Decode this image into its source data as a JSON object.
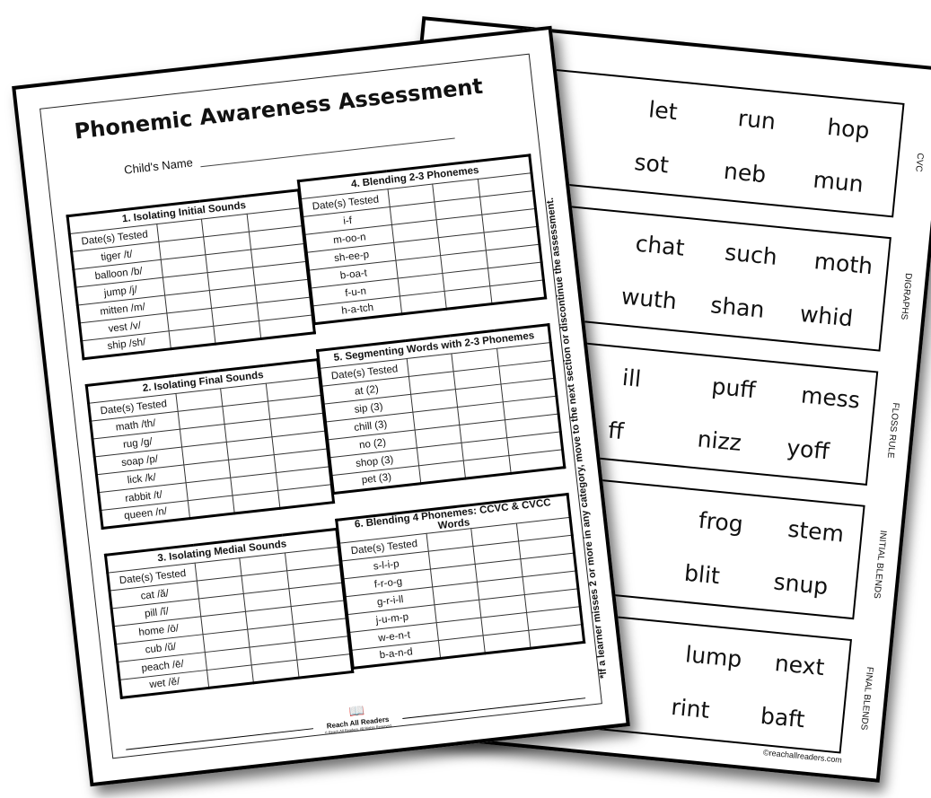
{
  "back_sheet": {
    "cards": [
      {
        "label": "CVC",
        "words": [
          "let",
          "run",
          "hop",
          "sot",
          "neb",
          "mun"
        ]
      },
      {
        "label": "DIGRAPHS",
        "words": [
          "chat",
          "such",
          "moth",
          "wuth",
          "shan",
          "whid"
        ]
      },
      {
        "label": "FLOSS RULE",
        "words": [
          "ill",
          "puff",
          "mess",
          "ff",
          "nizz",
          "yoff"
        ]
      },
      {
        "label": "INITIAL BLENDS",
        "words": [
          "",
          "frog",
          "stem",
          "",
          "blit",
          "snup"
        ]
      },
      {
        "label": "FINAL BLENDS",
        "words": [
          "",
          "lump",
          "next",
          "",
          "rint",
          "baft"
        ]
      }
    ],
    "copyright": "©reachallreaders.com"
  },
  "front_sheet": {
    "title": "Phonemic Awareness Assessment",
    "name_label": "Child's Name",
    "tables": [
      {
        "title": "1. Isolating Initial Sounds",
        "header": "Date(s) Tested",
        "rows": [
          "tiger /t/",
          "balloon /b/",
          "jump /j/",
          "mitten /m/",
          "vest /v/",
          "ship /sh/"
        ]
      },
      {
        "title": "2. Isolating Final Sounds",
        "header": "Date(s) Tested",
        "rows": [
          "math /th/",
          "rug /g/",
          "soap /p/",
          "lick /k/",
          "rabbit /t/",
          "queen /n/"
        ]
      },
      {
        "title": "3. Isolating Medial Sounds",
        "header": "Date(s) Tested",
        "rows": [
          "cat /ă/",
          "pill /ĭ/",
          "home /ō/",
          "cub /ŭ/",
          "peach /ē/",
          "wet /ĕ/"
        ]
      },
      {
        "title": "4. Blending 2-3 Phonemes",
        "header": "Date(s) Tested",
        "rows": [
          "i-f",
          "m-oo-n",
          "sh-ee-p",
          "b-oa-t",
          "f-u-n",
          "h-a-tch"
        ]
      },
      {
        "title": "5. Segmenting Words with 2-3 Phonemes",
        "header": "Date(s) Tested",
        "rows": [
          "at (2)",
          "sip (3)",
          "chill (3)",
          "no (2)",
          "shop (3)",
          "pet (3)"
        ]
      },
      {
        "title": "6. Blending 4 Phonemes: CCVC & CVCC Words",
        "header": "Date(s) Tested",
        "rows": [
          "s-l-i-p",
          "f-r-o-g",
          "g-r-i-ll",
          "j-u-m-p",
          "w-e-n-t",
          "b-a-n-d"
        ]
      }
    ],
    "note": "*If a learner misses 2 or more in any category, move to the next section or discontinue the assessment.",
    "logo": {
      "name": "Reach All Readers",
      "tagline": "© Reach All Readers. All Rights Reserved."
    }
  }
}
